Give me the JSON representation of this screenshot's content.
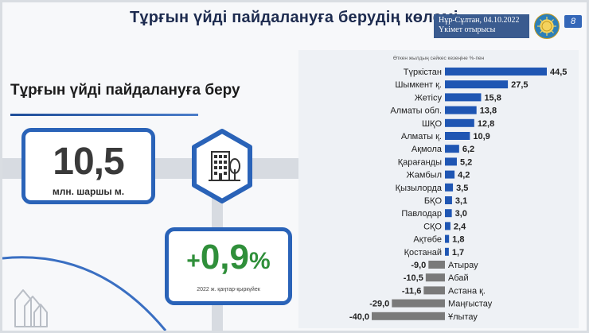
{
  "header": {
    "title": "Тұрғын үйді пайдалануға берудің көлемі",
    "location_date": "Нұр-Сұлтан, 04.10.2022",
    "meeting": "Үкімет отырысы",
    "page_badge": "8"
  },
  "left": {
    "section_title": "Тұрғын үйді пайдалануға беру",
    "value": "10,5",
    "value_unit": "млн. шаршы м.",
    "growth_sign": "+",
    "growth_number": "0,9",
    "growth_symbol": "%",
    "growth_period": "2022 ж. қаңтар-қыркүйек"
  },
  "colors": {
    "accent_blue": "#2a63b8",
    "positive_bar": "#1f56b3",
    "negative_bar": "#7a7a7a",
    "growth_green": "#2f8f3a"
  },
  "chart_data": {
    "type": "bar",
    "orientation": "horizontal",
    "subtitle": "Өткен жылдың сәйкес кезеңіне %-пен",
    "categories": [
      "Түркістан",
      "Шымкент қ.",
      "Жетісу",
      "Алматы обл.",
      "ШҚО",
      "Алматы қ.",
      "Ақмола",
      "Қарағанды",
      "Жамбыл",
      "Қызылорда",
      "БҚО",
      "Павлодар",
      "СҚО",
      "Ақтөбе",
      "Қостанай",
      "Атырау",
      "Абай",
      "Астана қ.",
      "Маңғыстау",
      "Ұлытау"
    ],
    "values": [
      44.5,
      27.5,
      15.8,
      13.8,
      12.8,
      10.9,
      6.2,
      5.2,
      4.2,
      3.5,
      3.1,
      3.0,
      2.4,
      1.8,
      1.7,
      -9.0,
      -10.5,
      -11.6,
      -29.0,
      -40.0
    ],
    "value_labels": [
      "44,5",
      "27,5",
      "15,8",
      "13,8",
      "12,8",
      "10,9",
      "6,2",
      "5,2",
      "4,2",
      "3,5",
      "3,1",
      "3,0",
      "2,4",
      "1,8",
      "1,7",
      "-9,0",
      "-10,5",
      "-11,6",
      "-29,0",
      "-40,0"
    ],
    "xlim": [
      -40,
      44.5
    ],
    "grid": false,
    "legend": "none"
  }
}
